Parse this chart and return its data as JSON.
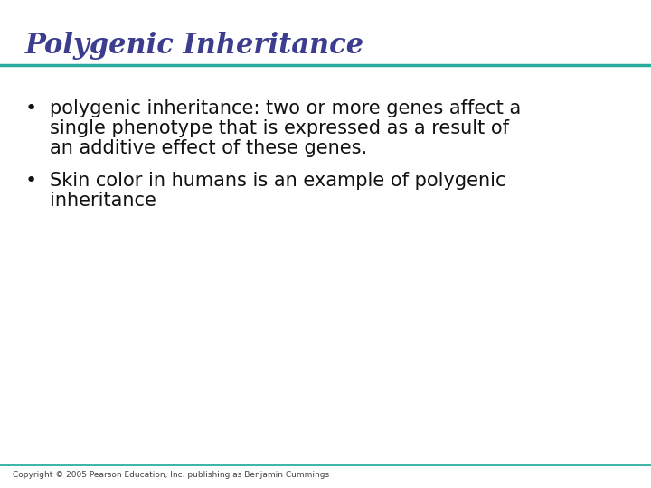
{
  "title": "Polygenic Inheritance",
  "title_color": "#3d3d8f",
  "title_fontsize": 22,
  "title_style": "italic",
  "title_weight": "bold",
  "title_font": "serif",
  "line_color": "#2aada0",
  "bullet1_line1": "polygenic inheritance: two or more genes affect a",
  "bullet1_line2": "single phenotype that is expressed as a result of",
  "bullet1_line3": "an additive effect of these genes.",
  "bullet2_line1": "Skin color in humans is an example of polygenic",
  "bullet2_line2": "inheritance",
  "body_fontsize": 15,
  "body_color": "#111111",
  "body_font": "DejaVu Sans",
  "copyright": "Copyright © 2005 Pearson Education, Inc. publishing as Benjamin Cummings",
  "copyright_fontsize": 6.5,
  "copyright_color": "#444444",
  "bg_color": "#ffffff"
}
